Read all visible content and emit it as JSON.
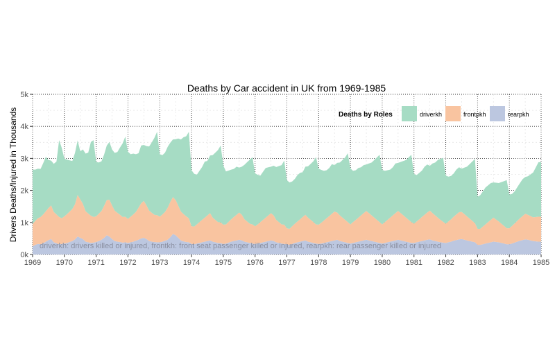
{
  "chart_data": {
    "type": "area",
    "stacked": true,
    "title": "Deaths by Car accident in UK from 1969-1985",
    "xlabel": "",
    "ylabel": "Drivers Deaths/Injured in Thousands",
    "xlim": [
      1969,
      1985
    ],
    "ylim": [
      0,
      5000
    ],
    "x_ticks": [
      "1969",
      "1970",
      "1971",
      "1972",
      "1973",
      "1974",
      "1975",
      "1976",
      "1977",
      "1978",
      "1979",
      "1980",
      "1981",
      "1982",
      "1983",
      "1984",
      "1985"
    ],
    "y_ticks": [
      "0k",
      "1k",
      "2k",
      "3k",
      "4k",
      "5k"
    ],
    "grid": true,
    "legend": {
      "title": "Deaths by Roles",
      "placement": "top-right",
      "entries": [
        "driverkh",
        "frontpkh",
        "rearpkh"
      ]
    },
    "annotation": "driverkh: drivers killed or injured, frontkh: front seat passenger killed or injured, rearpkh: rear passenger killed or injured",
    "x": [
      "1969-01",
      "1969-02",
      "1969-03",
      "1969-04",
      "1969-05",
      "1969-06",
      "1969-07",
      "1969-08",
      "1969-09",
      "1969-10",
      "1969-11",
      "1969-12",
      "1970-01",
      "1970-02",
      "1970-03",
      "1970-04",
      "1970-05",
      "1970-06",
      "1970-07",
      "1970-08",
      "1970-09",
      "1970-10",
      "1970-11",
      "1970-12",
      "1971-01",
      "1971-02",
      "1971-03",
      "1971-04",
      "1971-05",
      "1971-06",
      "1971-07",
      "1971-08",
      "1971-09",
      "1971-10",
      "1971-11",
      "1971-12",
      "1972-01",
      "1972-02",
      "1972-03",
      "1972-04",
      "1972-05",
      "1972-06",
      "1972-07",
      "1972-08",
      "1972-09",
      "1972-10",
      "1972-11",
      "1972-12",
      "1973-01",
      "1973-02",
      "1973-03",
      "1973-04",
      "1973-05",
      "1973-06",
      "1973-07",
      "1973-08",
      "1973-09",
      "1973-10",
      "1973-11",
      "1973-12",
      "1974-01",
      "1974-02",
      "1974-03",
      "1974-04",
      "1974-05",
      "1974-06",
      "1974-07",
      "1974-08",
      "1974-09",
      "1974-10",
      "1974-11",
      "1974-12",
      "1975-01",
      "1975-02",
      "1975-03",
      "1975-04",
      "1975-05",
      "1975-06",
      "1975-07",
      "1975-08",
      "1975-09",
      "1975-10",
      "1975-11",
      "1975-12",
      "1976-01",
      "1976-02",
      "1976-03",
      "1976-04",
      "1976-05",
      "1976-06",
      "1976-07",
      "1976-08",
      "1976-09",
      "1976-10",
      "1976-11",
      "1976-12",
      "1977-01",
      "1977-02",
      "1977-03",
      "1977-04",
      "1977-05",
      "1977-06",
      "1977-07",
      "1977-08",
      "1977-09",
      "1977-10",
      "1977-11",
      "1977-12",
      "1978-01",
      "1978-02",
      "1978-03",
      "1978-04",
      "1978-05",
      "1978-06",
      "1978-07",
      "1978-08",
      "1978-09",
      "1978-10",
      "1978-11",
      "1978-12",
      "1979-01",
      "1979-02",
      "1979-03",
      "1979-04",
      "1979-05",
      "1979-06",
      "1979-07",
      "1979-08",
      "1979-09",
      "1979-10",
      "1979-11",
      "1979-12",
      "1980-01",
      "1980-02",
      "1980-03",
      "1980-04",
      "1980-05",
      "1980-06",
      "1980-07",
      "1980-08",
      "1980-09",
      "1980-10",
      "1980-11",
      "1980-12",
      "1981-01",
      "1981-02",
      "1981-03",
      "1981-04",
      "1981-05",
      "1981-06",
      "1981-07",
      "1981-08",
      "1981-09",
      "1981-10",
      "1981-11",
      "1981-12",
      "1982-01",
      "1982-02",
      "1982-03",
      "1982-04",
      "1982-05",
      "1982-06",
      "1982-07",
      "1982-08",
      "1982-09",
      "1982-10",
      "1982-11",
      "1982-12",
      "1983-01",
      "1983-02",
      "1983-03",
      "1983-04",
      "1983-05",
      "1983-06",
      "1983-07",
      "1983-08",
      "1983-09",
      "1983-10",
      "1983-11",
      "1983-12",
      "1984-01",
      "1984-02",
      "1984-03",
      "1984-04",
      "1984-05",
      "1984-06",
      "1984-07",
      "1984-08",
      "1984-09",
      "1984-10",
      "1984-11",
      "1984-12"
    ],
    "series": [
      {
        "name": "rearpkh",
        "color": "#bcc7e0",
        "values": [
          250,
          300,
          330,
          320,
          350,
          400,
          450,
          480,
          380,
          350,
          320,
          330,
          340,
          360,
          390,
          420,
          470,
          560,
          520,
          480,
          400,
          380,
          360,
          370,
          390,
          420,
          460,
          520,
          600,
          560,
          480,
          420,
          400,
          390,
          370,
          380,
          360,
          380,
          400,
          430,
          460,
          500,
          520,
          480,
          420,
          400,
          390,
          380,
          380,
          400,
          430,
          460,
          540,
          640,
          600,
          520,
          440,
          410,
          390,
          380,
          330,
          320,
          340,
          360,
          380,
          400,
          420,
          440,
          400,
          380,
          360,
          350,
          330,
          340,
          370,
          400,
          420,
          440,
          460,
          440,
          400,
          380,
          360,
          340,
          330,
          340,
          360,
          380,
          400,
          420,
          440,
          420,
          380,
          360,
          340,
          330,
          320,
          300,
          330,
          360,
          380,
          400,
          420,
          440,
          400,
          380,
          360,
          340,
          330,
          340,
          360,
          380,
          400,
          420,
          440,
          460,
          420,
          400,
          380,
          360,
          340,
          360,
          380,
          400,
          420,
          440,
          460,
          440,
          420,
          400,
          380,
          360,
          340,
          360,
          380,
          400,
          420,
          440,
          460,
          440,
          420,
          400,
          380,
          360,
          360,
          380,
          400,
          420,
          440,
          460,
          470,
          440,
          420,
          400,
          380,
          370,
          360,
          380,
          400,
          430,
          450,
          470,
          480,
          460,
          440,
          420,
          400,
          380,
          300,
          300,
          320,
          340,
          360,
          380,
          400,
          390,
          380,
          360,
          340,
          320,
          320,
          340,
          370,
          400,
          430,
          450,
          470,
          460,
          440,
          420,
          410,
          400
        ]
      },
      {
        "name": "frontpkh",
        "color": "#f9c4a0",
        "values": [
          700,
          750,
          800,
          850,
          900,
          950,
          1000,
          1050,
          950,
          900,
          850,
          800,
          850,
          900,
          950,
          1000,
          1100,
          1300,
          1200,
          1100,
          950,
          900,
          850,
          800,
          800,
          850,
          900,
          1000,
          1100,
          1150,
          1050,
          950,
          900,
          850,
          800,
          800,
          750,
          800,
          850,
          900,
          1000,
          1100,
          1150,
          1050,
          950,
          900,
          850,
          850,
          800,
          850,
          900,
          1000,
          1100,
          1150,
          1100,
          1000,
          900,
          850,
          800,
          750,
          550,
          550,
          600,
          650,
          700,
          750,
          800,
          850,
          750,
          700,
          650,
          650,
          600,
          600,
          650,
          700,
          750,
          800,
          850,
          800,
          700,
          650,
          600,
          600,
          550,
          600,
          650,
          700,
          750,
          800,
          850,
          800,
          700,
          650,
          600,
          600,
          500,
          500,
          550,
          600,
          650,
          700,
          750,
          800,
          750,
          700,
          650,
          600,
          600,
          650,
          700,
          750,
          800,
          850,
          900,
          850,
          800,
          750,
          700,
          650,
          600,
          650,
          700,
          750,
          800,
          850,
          900,
          850,
          800,
          750,
          700,
          650,
          600,
          650,
          700,
          750,
          800,
          850,
          900,
          850,
          800,
          750,
          700,
          650,
          600,
          650,
          700,
          750,
          800,
          850,
          900,
          850,
          800,
          750,
          700,
          650,
          600,
          650,
          700,
          750,
          800,
          850,
          850,
          800,
          750,
          700,
          650,
          600,
          500,
          500,
          550,
          600,
          650,
          700,
          750,
          700,
          650,
          600,
          550,
          500,
          500,
          550,
          600,
          650,
          700,
          750,
          800,
          780,
          760,
          740,
          760,
          780
        ]
      },
      {
        "name": "driverkh",
        "color": "#a6dcc4",
        "values": [
          1700,
          1600,
          1550,
          1500,
          1600,
          1700,
          1500,
          1400,
          1500,
          1650,
          2400,
          2200,
          1800,
          1700,
          1600,
          1500,
          1600,
          1700,
          1500,
          1700,
          1800,
          1900,
          2300,
          2400,
          1700,
          1600,
          1550,
          1600,
          1700,
          1800,
          1750,
          1800,
          1900,
          2100,
          2300,
          2500,
          2100,
          1950,
          1900,
          1800,
          1700,
          1800,
          1750,
          1850,
          2000,
          2200,
          2400,
          2600,
          1950,
          1850,
          1850,
          1900,
          1850,
          1800,
          1900,
          2100,
          2250,
          2400,
          2500,
          2700,
          1750,
          1650,
          1550,
          1600,
          1650,
          1750,
          1700,
          1800,
          1950,
          2100,
          2250,
          2400,
          1850,
          1650,
          1600,
          1550,
          1500,
          1500,
          1400,
          1500,
          1700,
          1850,
          2000,
          2100,
          1650,
          1550,
          1450,
          1500,
          1550,
          1500,
          1450,
          1550,
          1650,
          1750,
          1850,
          2000,
          1500,
          1450,
          1400,
          1400,
          1450,
          1450,
          1400,
          1500,
          1600,
          1750,
          1900,
          2100,
          1750,
          1650,
          1550,
          1500,
          1500,
          1550,
          1450,
          1550,
          1650,
          1800,
          1950,
          2150,
          1750,
          1600,
          1550,
          1550,
          1500,
          1500,
          1450,
          1550,
          1650,
          1800,
          1950,
          2100,
          1700,
          1600,
          1550,
          1500,
          1500,
          1550,
          1500,
          1600,
          1700,
          1800,
          1950,
          2100,
          1550,
          1450,
          1450,
          1450,
          1500,
          1500,
          1400,
          1550,
          1650,
          1800,
          1900,
          2000,
          1500,
          1400,
          1350,
          1350,
          1400,
          1400,
          1350,
          1450,
          1550,
          1700,
          1850,
          2000,
          1000,
          1050,
          1100,
          1150,
          1150,
          1150,
          1100,
          1150,
          1200,
          1300,
          1400,
          1500,
          1050,
          1000,
          1000,
          1050,
          1100,
          1150,
          1150,
          1200,
          1300,
          1400,
          1550,
          1700
        ]
      }
    ]
  }
}
